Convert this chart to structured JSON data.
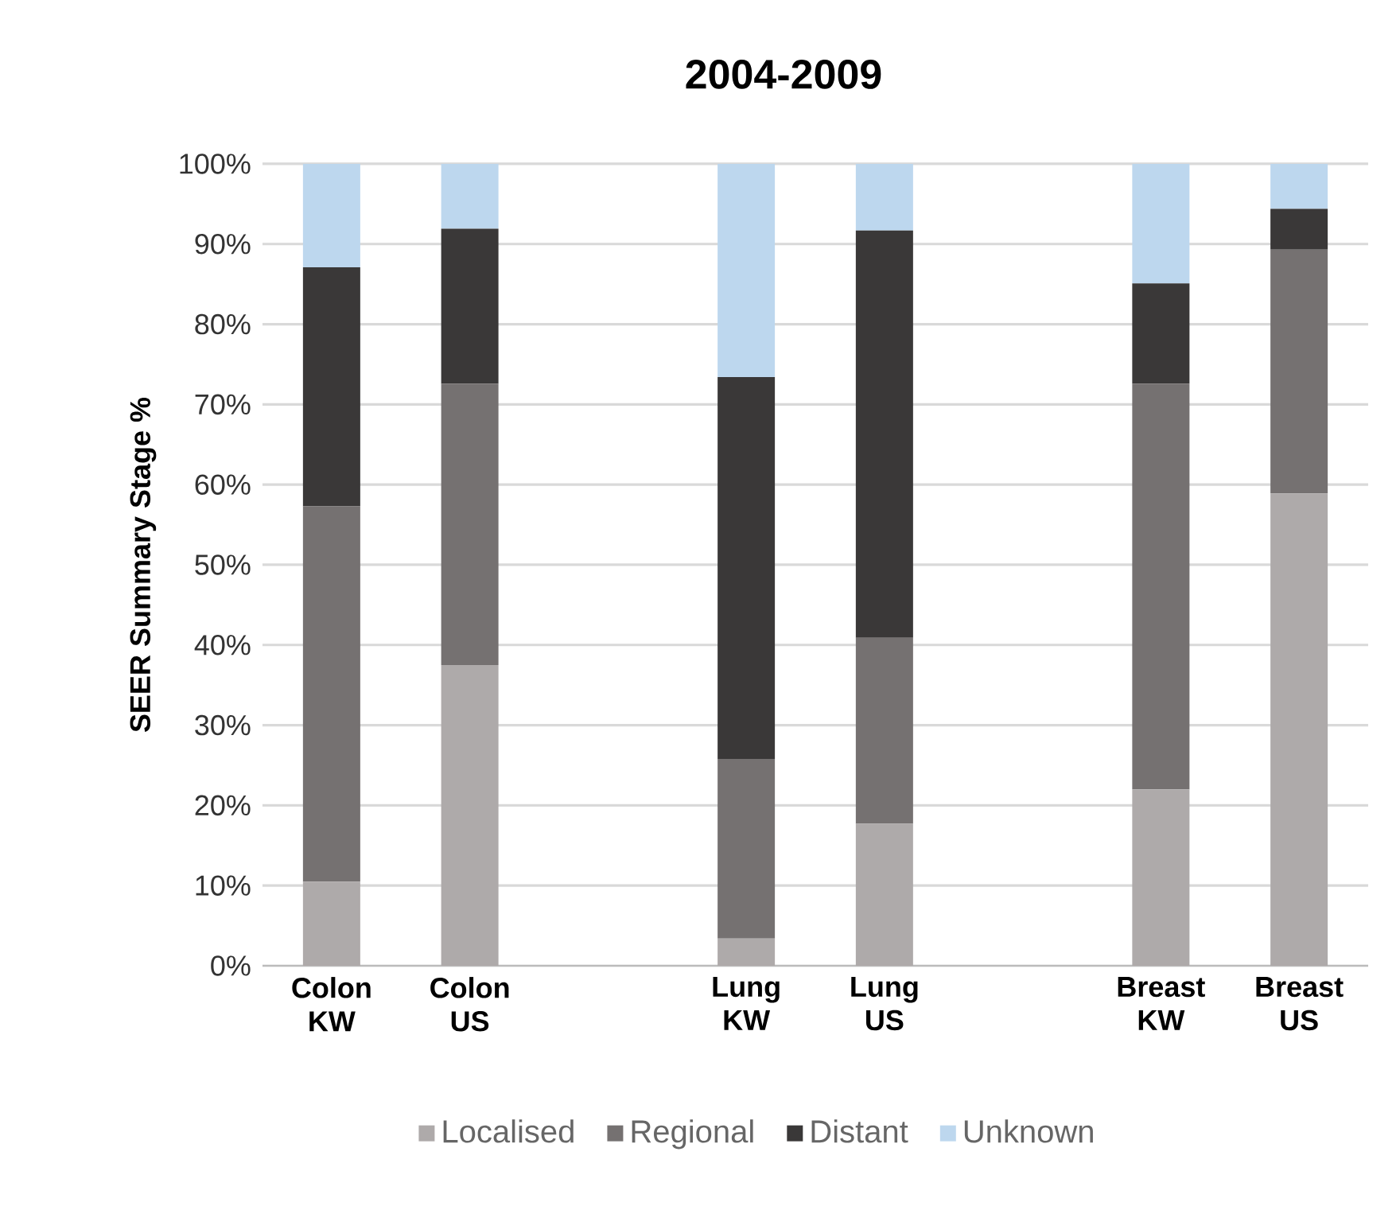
{
  "chart_data": {
    "type": "bar",
    "stacked": true,
    "title": "2004-2009",
    "ylabel": "SEER Summary Stage %",
    "categories": [
      "Colon KW",
      "Colon US",
      null,
      "Lung KW",
      "Lung US",
      null,
      "Breast KW",
      "Breast US"
    ],
    "series": [
      {
        "name": "Localised",
        "color": "#aeaaaa",
        "values": [
          10.5,
          37.5,
          null,
          3.4,
          17.7,
          null,
          22.0,
          58.9
        ]
      },
      {
        "name": "Regional",
        "color": "#757171",
        "values": [
          46.8,
          35.1,
          null,
          22.4,
          23.2,
          null,
          50.6,
          30.4
        ]
      },
      {
        "name": "Distant",
        "color": "#3a3838",
        "values": [
          29.8,
          19.3,
          null,
          47.6,
          50.8,
          null,
          12.5,
          5.1
        ]
      },
      {
        "name": "Unknown",
        "color": "#bdd7ee",
        "values": [
          12.9,
          8.1,
          null,
          26.6,
          8.3,
          null,
          14.9,
          5.6
        ]
      }
    ],
    "ylim": [
      0,
      100
    ],
    "yticks": [
      {
        "value": 0,
        "label": "0%"
      },
      {
        "value": 10,
        "label": "10%"
      },
      {
        "value": 20,
        "label": "20%"
      },
      {
        "value": 30,
        "label": "30%"
      },
      {
        "value": 40,
        "label": "40%"
      },
      {
        "value": 50,
        "label": "50%"
      },
      {
        "value": 60,
        "label": "60%"
      },
      {
        "value": 70,
        "label": "70%"
      },
      {
        "value": 80,
        "label": "80%"
      },
      {
        "value": 90,
        "label": "90%"
      },
      {
        "value": 100,
        "label": "100%"
      }
    ],
    "grid": "y",
    "legend": "bottom"
  }
}
